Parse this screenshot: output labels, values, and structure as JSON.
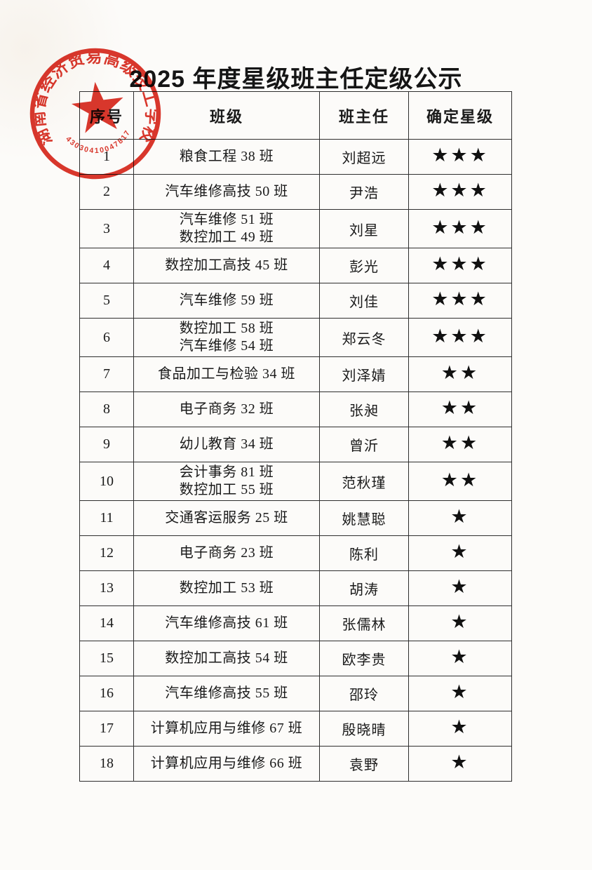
{
  "doc": {
    "title": "2025 年度星级班主任定级公示"
  },
  "seal": {
    "school_name": "湖南省经济贸易高级技工学校",
    "serial_number": "43030410047817",
    "color": "#d8271b"
  },
  "table": {
    "headers": [
      "序号",
      "班级",
      "班主任",
      "确定星级"
    ],
    "star_glyph": "★",
    "rows": [
      {
        "no": "1",
        "class_lines": [
          "粮食工程 38 班"
        ],
        "teacher": "刘超远",
        "stars": 3
      },
      {
        "no": "2",
        "class_lines": [
          "汽车维修高技 50 班"
        ],
        "teacher": "尹浩",
        "stars": 3
      },
      {
        "no": "3",
        "class_lines": [
          "汽车维修 51 班",
          "数控加工 49 班"
        ],
        "teacher": "刘星",
        "stars": 3
      },
      {
        "no": "4",
        "class_lines": [
          "数控加工高技 45 班"
        ],
        "teacher": "彭光",
        "stars": 3
      },
      {
        "no": "5",
        "class_lines": [
          "汽车维修 59 班"
        ],
        "teacher": "刘佳",
        "stars": 3
      },
      {
        "no": "6",
        "class_lines": [
          "数控加工 58 班",
          "汽车维修 54 班"
        ],
        "teacher": "郑云冬",
        "stars": 3
      },
      {
        "no": "7",
        "class_lines": [
          "食品加工与检验 34 班"
        ],
        "teacher": "刘泽婧",
        "stars": 2
      },
      {
        "no": "8",
        "class_lines": [
          "电子商务 32 班"
        ],
        "teacher": "张昶",
        "stars": 2
      },
      {
        "no": "9",
        "class_lines": [
          "幼儿教育 34 班"
        ],
        "teacher": "曾沂",
        "stars": 2
      },
      {
        "no": "10",
        "class_lines": [
          "会计事务 81 班",
          "数控加工 55 班"
        ],
        "teacher": "范秋瑾",
        "stars": 2
      },
      {
        "no": "11",
        "class_lines": [
          "交通客运服务 25 班"
        ],
        "teacher": "姚慧聪",
        "stars": 1
      },
      {
        "no": "12",
        "class_lines": [
          "电子商务 23 班"
        ],
        "teacher": "陈利",
        "stars": 1
      },
      {
        "no": "13",
        "class_lines": [
          "数控加工 53 班"
        ],
        "teacher": "胡涛",
        "stars": 1
      },
      {
        "no": "14",
        "class_lines": [
          "汽车维修高技 61 班"
        ],
        "teacher": "张儒林",
        "stars": 1
      },
      {
        "no": "15",
        "class_lines": [
          "数控加工高技 54 班"
        ],
        "teacher": "欧李贵",
        "stars": 1
      },
      {
        "no": "16",
        "class_lines": [
          "汽车维修高技 55 班"
        ],
        "teacher": "邵玲",
        "stars": 1
      },
      {
        "no": "17",
        "class_lines": [
          "计算机应用与维修 67 班"
        ],
        "teacher": "殷晓晴",
        "stars": 1
      },
      {
        "no": "18",
        "class_lines": [
          "计算机应用与维修 66 班"
        ],
        "teacher": "袁野",
        "stars": 1
      }
    ]
  }
}
